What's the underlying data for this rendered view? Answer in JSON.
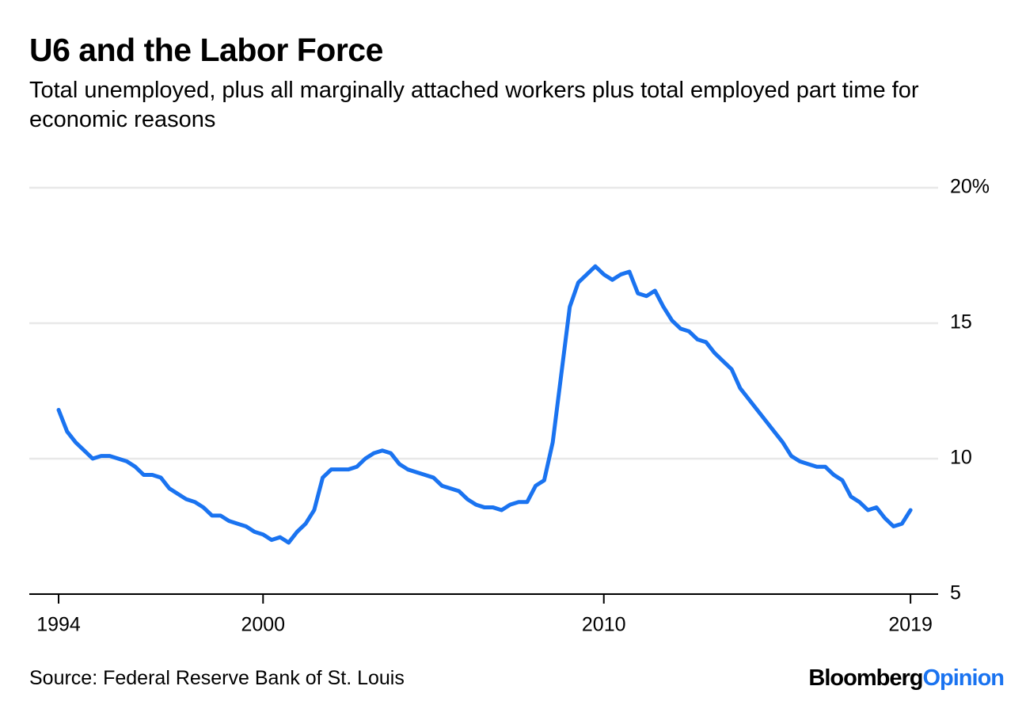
{
  "chart_data": {
    "type": "line",
    "title": "U6 and the Labor Force",
    "subtitle": "Total unemployed, plus all marginally attached workers plus total employed part time for economic reasons",
    "source": "Source: Federal Reserve Bank of St. Louis",
    "brand": "Bloomberg",
    "brand_suffix": "Opinion",
    "color": "#1a73f0",
    "grid": true,
    "xlim": [
      1993.14,
      2019.81
    ],
    "xticks": [
      1994,
      2000,
      2010,
      2019
    ],
    "ylim": [
      5,
      20
    ],
    "yticks": [
      5,
      10,
      15,
      {
        "value": 20,
        "label": "20%"
      }
    ],
    "x": [
      1994,
      1994.25,
      1994.5,
      1994.75,
      1995,
      1995.25,
      1995.5,
      1995.75,
      1996,
      1996.25,
      1996.5,
      1996.75,
      1997,
      1997.25,
      1997.5,
      1997.75,
      1998,
      1998.25,
      1998.5,
      1998.75,
      1999,
      1999.25,
      1999.5,
      1999.75,
      2000,
      2000.25,
      2000.5,
      2000.75,
      2001,
      2001.25,
      2001.5,
      2001.75,
      2002,
      2002.25,
      2002.5,
      2002.75,
      2003,
      2003.25,
      2003.5,
      2003.75,
      2004,
      2004.25,
      2004.5,
      2004.75,
      2005,
      2005.25,
      2005.5,
      2005.75,
      2006,
      2006.25,
      2006.5,
      2006.75,
      2007,
      2007.25,
      2007.5,
      2007.75,
      2008,
      2008.25,
      2008.5,
      2008.75,
      2009,
      2009.25,
      2009.5,
      2009.75,
      2010,
      2010.25,
      2010.5,
      2010.75,
      2011,
      2011.25,
      2011.5,
      2011.75,
      2012,
      2012.25,
      2012.5,
      2012.75,
      2013,
      2013.25,
      2013.5,
      2013.75,
      2014,
      2014.25,
      2014.5,
      2014.75,
      2015,
      2015.25,
      2015.5,
      2015.75,
      2016,
      2016.25,
      2016.5,
      2016.75,
      2017,
      2017.25,
      2017.5,
      2017.75,
      2018,
      2018.25,
      2018.5,
      2018.75,
      2019
    ],
    "values": [
      11.8,
      11.0,
      10.6,
      10.3,
      10.0,
      10.1,
      10.1,
      10.0,
      9.9,
      9.7,
      9.4,
      9.4,
      9.3,
      8.9,
      8.7,
      8.5,
      8.4,
      8.2,
      7.9,
      7.9,
      7.7,
      7.6,
      7.5,
      7.3,
      7.2,
      7.0,
      7.1,
      6.9,
      7.3,
      7.6,
      8.1,
      9.3,
      9.6,
      9.6,
      9.6,
      9.7,
      10.0,
      10.2,
      10.3,
      10.2,
      9.8,
      9.6,
      9.5,
      9.4,
      9.3,
      9.0,
      8.9,
      8.8,
      8.5,
      8.3,
      8.2,
      8.2,
      8.1,
      8.3,
      8.4,
      8.4,
      9.0,
      9.2,
      10.6,
      13.1,
      15.6,
      16.5,
      16.8,
      17.1,
      16.8,
      16.6,
      16.8,
      16.9,
      16.1,
      16.0,
      16.2,
      15.6,
      15.1,
      14.8,
      14.7,
      14.4,
      14.3,
      13.9,
      13.6,
      13.3,
      12.6,
      12.2,
      11.8,
      11.4,
      11.0,
      10.6,
      10.1,
      9.9,
      9.8,
      9.7,
      9.7,
      9.4,
      9.2,
      8.6,
      8.4,
      8.1,
      8.2,
      7.8,
      7.5,
      7.6,
      8.1
    ]
  }
}
